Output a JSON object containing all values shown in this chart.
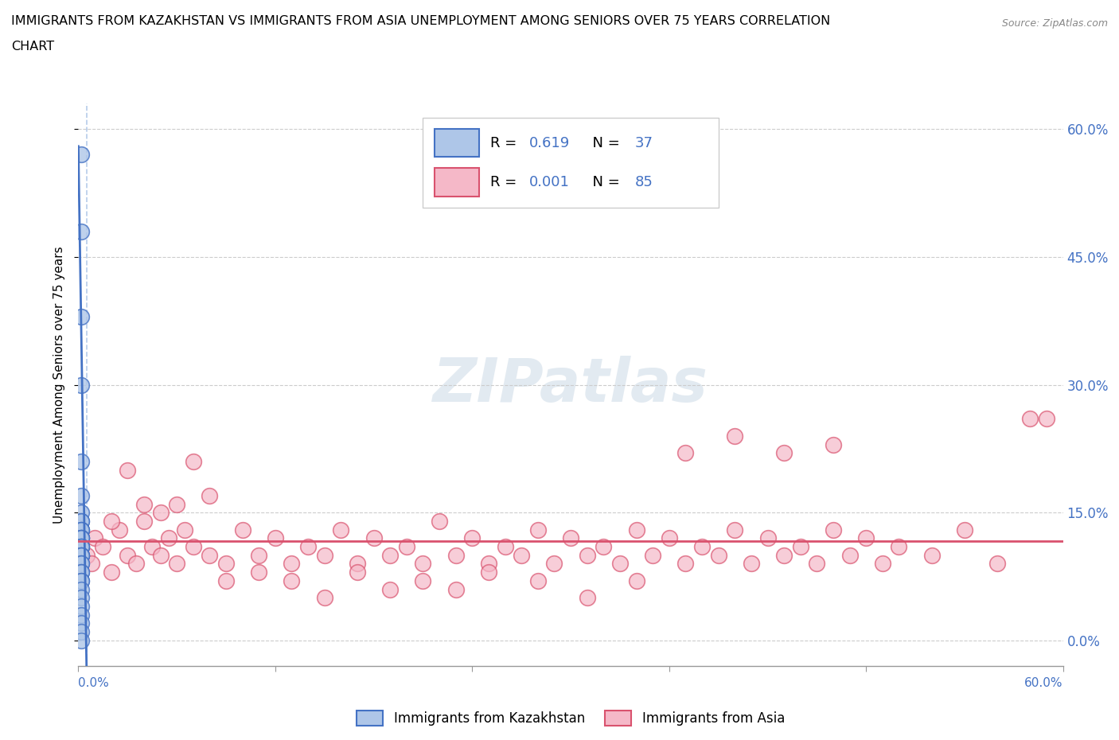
{
  "title_line1": "IMMIGRANTS FROM KAZAKHSTAN VS IMMIGRANTS FROM ASIA UNEMPLOYMENT AMONG SENIORS OVER 75 YEARS CORRELATION",
  "title_line2": "CHART",
  "source": "Source: ZipAtlas.com",
  "ylabel": "Unemployment Among Seniors over 75 years",
  "yticks_labels": [
    "0.0%",
    "15.0%",
    "30.0%",
    "45.0%",
    "60.0%"
  ],
  "ytick_vals": [
    0,
    15,
    30,
    45,
    60
  ],
  "xlim": [
    0,
    60
  ],
  "ylim": [
    -3,
    63
  ],
  "watermark": "ZIPatlas",
  "color_kaz": "#aec6e8",
  "color_asia": "#f5b8c8",
  "line_kaz": "#4472c4",
  "line_asia": "#d9526e",
  "kazakhstan_x": [
    0.15,
    0.15,
    0.15,
    0.15,
    0.15,
    0.15,
    0.15,
    0.15,
    0.15,
    0.15,
    0.15,
    0.15,
    0.15,
    0.15,
    0.15,
    0.15,
    0.15,
    0.15,
    0.15,
    0.15,
    0.15,
    0.15,
    0.15,
    0.15,
    0.15,
    0.15,
    0.15,
    0.15,
    0.15,
    0.15,
    0.15,
    0.15,
    0.15,
    0.15,
    0.15,
    0.15,
    0.15
  ],
  "kazakhstan_y": [
    57,
    48,
    38,
    30,
    21,
    17,
    15,
    14,
    14,
    13,
    13,
    13,
    12,
    12,
    12,
    12,
    11,
    11,
    11,
    11,
    10,
    10,
    10,
    10,
    9,
    9,
    8,
    8,
    7,
    7,
    6,
    5,
    4,
    3,
    2,
    1,
    0
  ],
  "asia_x": [
    0.5,
    0.8,
    1.0,
    1.5,
    2.0,
    2.5,
    3.0,
    3.5,
    4.0,
    4.5,
    5.0,
    5.5,
    6.0,
    6.5,
    7.0,
    8.0,
    9.0,
    10.0,
    11.0,
    12.0,
    13.0,
    14.0,
    15.0,
    16.0,
    17.0,
    18.0,
    19.0,
    20.0,
    21.0,
    22.0,
    23.0,
    24.0,
    25.0,
    26.0,
    27.0,
    28.0,
    29.0,
    30.0,
    31.0,
    32.0,
    33.0,
    34.0,
    35.0,
    36.0,
    37.0,
    38.0,
    39.0,
    40.0,
    41.0,
    42.0,
    43.0,
    44.0,
    45.0,
    46.0,
    47.0,
    48.0,
    49.0,
    50.0,
    52.0,
    54.0,
    56.0,
    58.0,
    3.0,
    5.0,
    7.0,
    9.0,
    11.0,
    13.0,
    15.0,
    17.0,
    19.0,
    21.0,
    23.0,
    25.0,
    28.0,
    31.0,
    34.0,
    37.0,
    40.0,
    43.0,
    46.0,
    59.0,
    2.0,
    4.0,
    6.0,
    8.0
  ],
  "asia_y": [
    10,
    9,
    12,
    11,
    8,
    13,
    10,
    9,
    14,
    11,
    10,
    12,
    9,
    13,
    11,
    10,
    9,
    13,
    10,
    12,
    9,
    11,
    10,
    13,
    9,
    12,
    10,
    11,
    9,
    14,
    10,
    12,
    9,
    11,
    10,
    13,
    9,
    12,
    10,
    11,
    9,
    13,
    10,
    12,
    9,
    11,
    10,
    13,
    9,
    12,
    10,
    11,
    9,
    13,
    10,
    12,
    9,
    11,
    10,
    13,
    9,
    26,
    20,
    15,
    21,
    7,
    8,
    7,
    5,
    8,
    6,
    7,
    6,
    8,
    7,
    5,
    7,
    22,
    24,
    22,
    23,
    26,
    14,
    16,
    16,
    17
  ]
}
